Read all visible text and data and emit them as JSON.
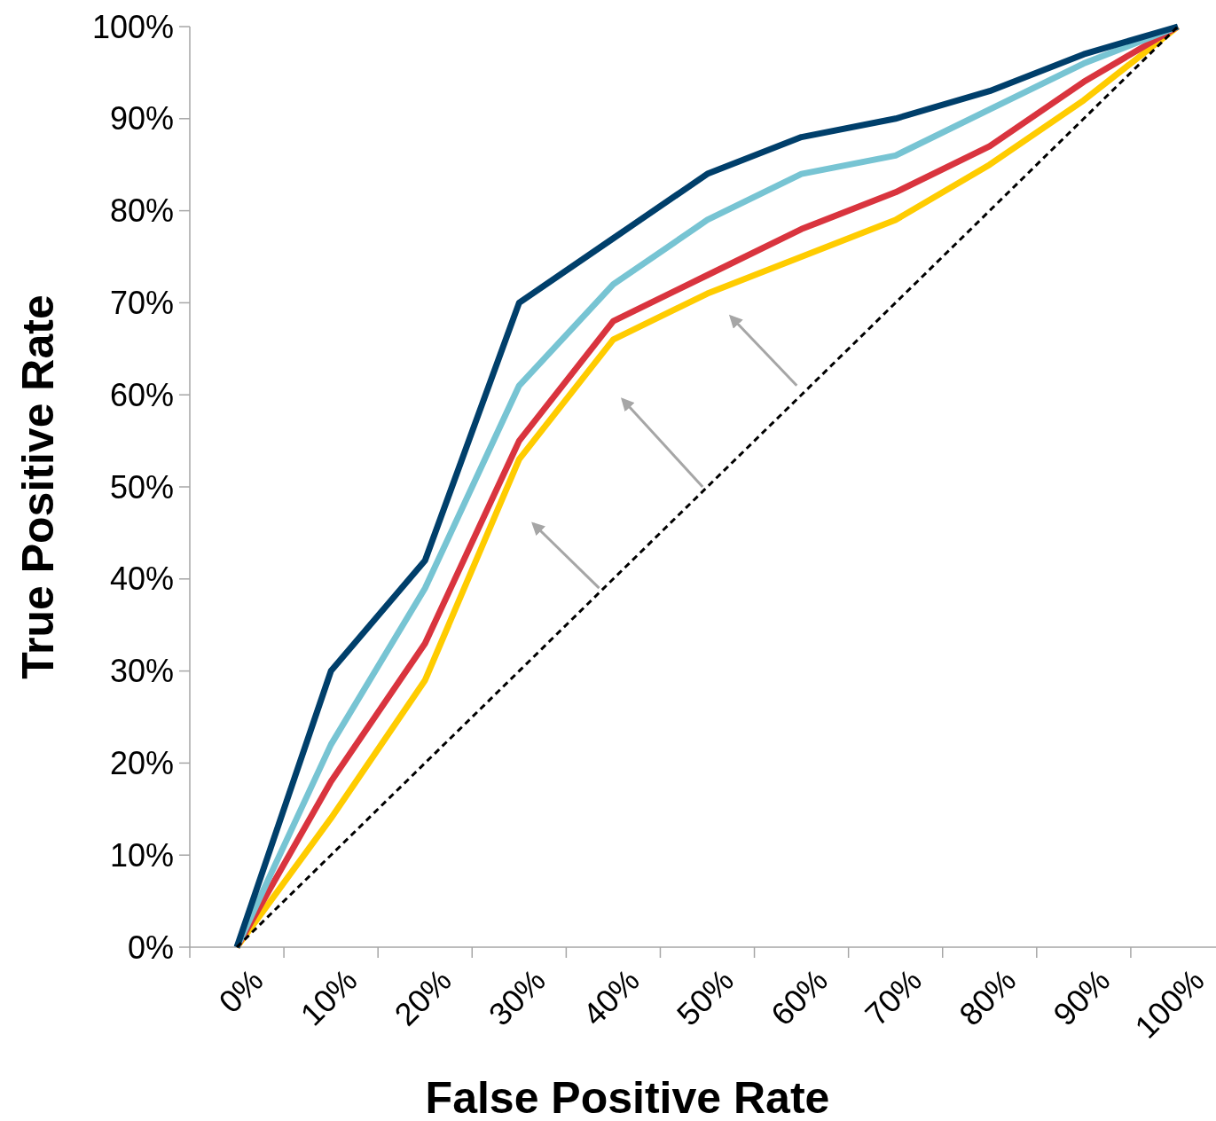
{
  "chart_data": {
    "type": "line",
    "xlabel": "False Positive Rate",
    "ylabel": "True Positive Rate",
    "categories": [
      "0%",
      "10%",
      "20%",
      "30%",
      "40%",
      "50%",
      "60%",
      "70%",
      "80%",
      "90%",
      "100%"
    ],
    "ylim": [
      0,
      100
    ],
    "yticks": [
      {
        "value": 0,
        "label": "0%"
      },
      {
        "value": 10,
        "label": "10%"
      },
      {
        "value": 20,
        "label": "20%"
      },
      {
        "value": 30,
        "label": "30%"
      },
      {
        "value": 40,
        "label": "40%"
      },
      {
        "value": 50,
        "label": "50%"
      },
      {
        "value": 60,
        "label": "60%"
      },
      {
        "value": 70,
        "label": "70%"
      },
      {
        "value": 80,
        "label": "80%"
      },
      {
        "value": 90,
        "label": "90%"
      },
      {
        "value": 100,
        "label": "100%"
      }
    ],
    "grid": false,
    "series": [
      {
        "color": "#ffcc00",
        "values": [
          0,
          14,
          29,
          53,
          66,
          71,
          75,
          79,
          85,
          92,
          100
        ]
      },
      {
        "color": "#d9343e",
        "values": [
          0,
          18,
          33,
          55,
          68,
          73,
          78,
          82,
          87,
          94,
          100
        ]
      },
      {
        "color": "#77c4d3",
        "values": [
          0,
          22,
          39,
          61,
          72,
          79,
          84,
          86,
          91,
          96,
          100
        ]
      },
      {
        "color": "#003f6b",
        "values": [
          0,
          30,
          42,
          70,
          77,
          84,
          88,
          90,
          93,
          97,
          100
        ]
      },
      {
        "color": "#000000",
        "line_style": "dashed",
        "values": [
          0,
          10,
          20,
          30,
          40,
          50,
          60,
          70,
          80,
          90,
          100
        ]
      }
    ]
  }
}
